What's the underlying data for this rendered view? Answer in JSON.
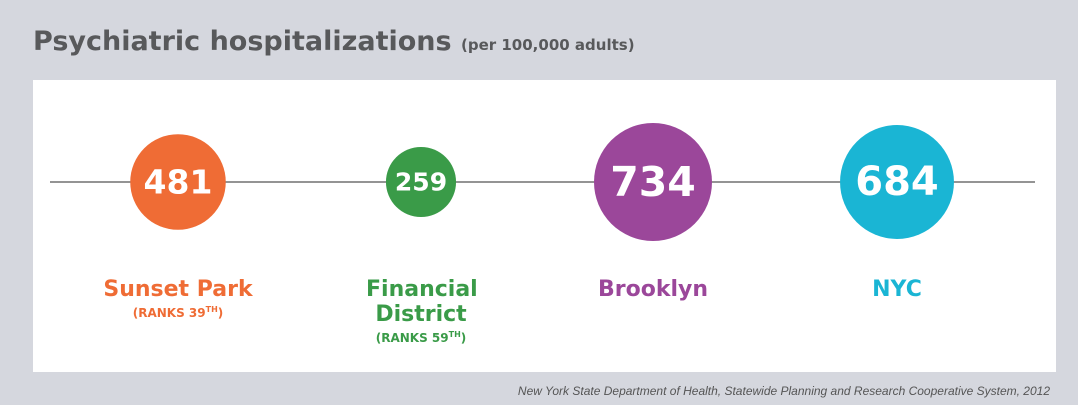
{
  "chart_data": {
    "type": "bubble",
    "title": "Psychiatric hospitalizations",
    "subtitle": "(per 100,000 adults)",
    "categories": [
      "Sunset Park",
      "Financial District",
      "Brooklyn",
      "NYC"
    ],
    "values": [
      481,
      259,
      734,
      684
    ],
    "colors": [
      "#ef6c35",
      "#3a9b48",
      "#9b479a",
      "#1ab5d4"
    ],
    "rank_labels": [
      {
        "text": "(RANKS 39",
        "sup": "TH",
        "close": ")"
      },
      {
        "text": "(RANKS 59",
        "sup": "TH",
        "close": ")"
      },
      null,
      null
    ],
    "source": "New York State Department of Health, Statewide Planning and Research Cooperative System, 2012"
  }
}
